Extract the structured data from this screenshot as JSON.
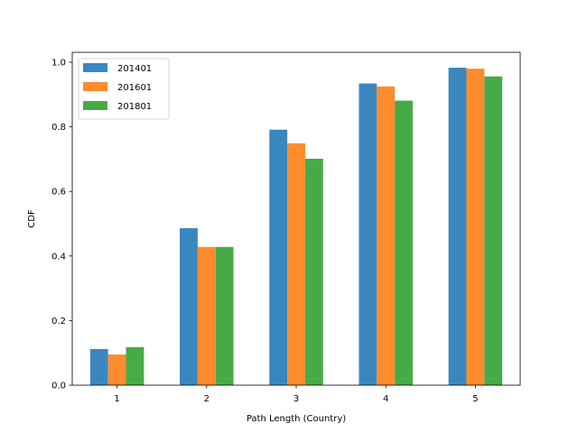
{
  "chart_data": {
    "type": "bar",
    "categories": [
      "1",
      "2",
      "3",
      "4",
      "5"
    ],
    "series": [
      {
        "name": "201401",
        "color": "#3a87c0",
        "values": [
          0.112,
          0.486,
          0.791,
          0.934,
          0.983
        ]
      },
      {
        "name": "201601",
        "color": "#fe8c2c",
        "values": [
          0.095,
          0.428,
          0.749,
          0.925,
          0.98
        ]
      },
      {
        "name": "201801",
        "color": "#46ab46",
        "values": [
          0.118,
          0.428,
          0.701,
          0.881,
          0.956
        ]
      }
    ],
    "xlabel": "Path Length (Country)",
    "ylabel": "CDF",
    "ylim": [
      0,
      1.0306
    ],
    "yticks": [
      "0.0",
      "0.2",
      "0.4",
      "0.6",
      "0.8",
      "1.0"
    ],
    "legend_position": "top-left",
    "grid": false
  }
}
